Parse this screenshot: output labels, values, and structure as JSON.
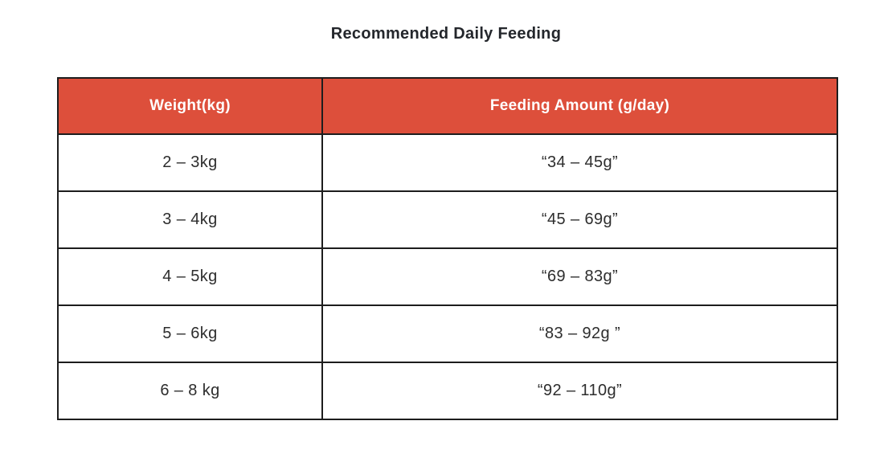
{
  "page": {
    "background_color": "#ffffff",
    "title": "Recommended Daily Feeding",
    "title_color": "#24272c"
  },
  "table_style": {
    "header_background_color": "#dd4f3b",
    "header_text_color": "#ffffff",
    "border_color": "#1d1d1d",
    "body_text_color": "#2d2d2d"
  },
  "chart_data": {
    "type": "table",
    "title": "Recommended Daily Feeding",
    "columns": [
      "Weight(kg)",
      "Feeding Amount (g/day)"
    ],
    "rows": [
      [
        "2 – 3kg",
        "“34 – 45g”"
      ],
      [
        "3 – 4kg",
        "“45 – 69g”"
      ],
      [
        "4 – 5kg",
        "“69 – 83g”"
      ],
      [
        "5 – 6kg",
        "“83 – 92g ”"
      ],
      [
        "6 – 8 kg",
        "“92 – 110g”"
      ]
    ]
  }
}
